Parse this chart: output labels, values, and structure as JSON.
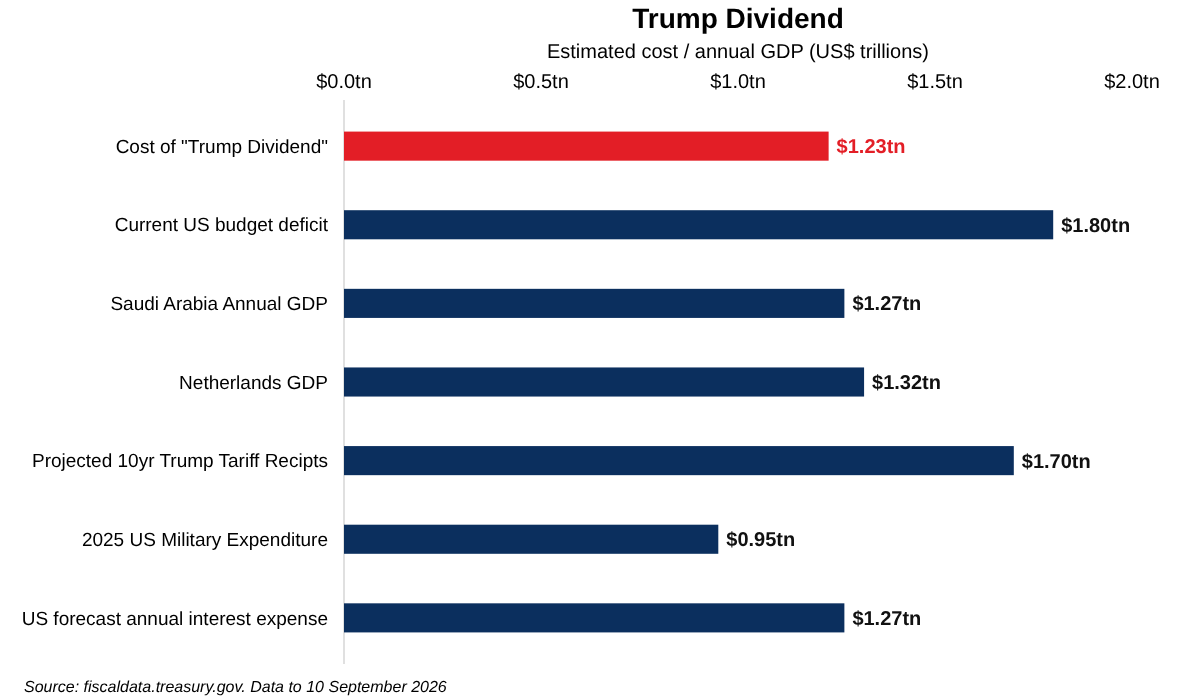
{
  "chart_data": {
    "type": "bar",
    "orientation": "horizontal",
    "title": "Trump Dividend",
    "xlabel": "Estimated cost / annual GDP (US$ trillions)",
    "categories": [
      "Cost of \"Trump Dividend\"",
      "Current US budget deficit",
      "Saudi Arabia Annual GDP",
      "Netherlands GDP",
      "Projected 10yr Trump Tariff Recipts",
      "2025 US Military Expenditure",
      "US forecast annual interest expense"
    ],
    "values": [
      1.23,
      1.8,
      1.27,
      1.32,
      1.7,
      0.95,
      1.27
    ],
    "colors": [
      "#e31e26",
      "#0b2f5e",
      "#0b2f5e",
      "#0b2f5e",
      "#0b2f5e",
      "#0b2f5e",
      "#0b2f5e"
    ],
    "value_labels": [
      "$1.23tn",
      "$1.80tn",
      "$1.27tn",
      "$1.32tn",
      "$1.70tn",
      "$0.95tn",
      "$1.27tn"
    ],
    "xlim": [
      0,
      2
    ],
    "xticks": [
      {
        "value": 0,
        "label": "$0.0tn"
      },
      {
        "value": 0.5,
        "label": "$0.5tn"
      },
      {
        "value": 1,
        "label": "$1.0tn"
      },
      {
        "value": 1.5,
        "label": "$1.5tn"
      },
      {
        "value": 2,
        "label": "$2.0tn"
      }
    ],
    "grid": false,
    "annotations": [
      "Source: fiscaldata.treasury.gov. Data to 10 September 2026"
    ]
  }
}
